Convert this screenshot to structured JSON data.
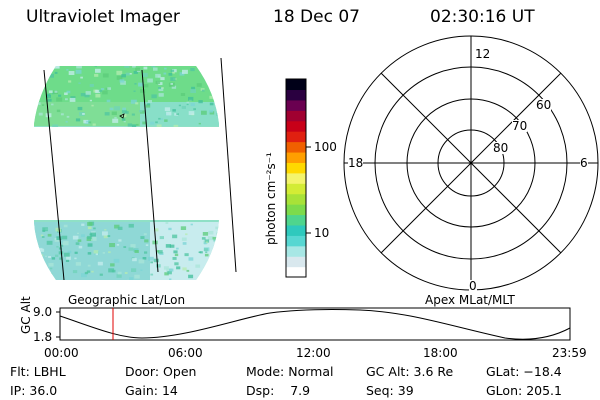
{
  "header": {
    "instrument": "Ultraviolet Imager",
    "date": "18 Dec 07",
    "time": "02:30:16 UT"
  },
  "colorbar": {
    "unit_label": "photon cm⁻²s⁻¹",
    "ticks": [
      "100",
      "10"
    ],
    "colors": [
      "#ffffff",
      "#d9e8ee",
      "#a7e7e5",
      "#57d7d2",
      "#2fc9bd",
      "#4fd58d",
      "#7ddb4b",
      "#a8e238",
      "#d3ec35",
      "#f4f46c",
      "#ffd900",
      "#ff9f00",
      "#f06000",
      "#e02010",
      "#c80018",
      "#a00030",
      "#6a0050",
      "#2a0040",
      "#000018"
    ]
  },
  "map_panel": {
    "caption": "Geographic Lat/Lon",
    "colors": {
      "fill": "#8fe0c6",
      "top": "#6edc8a",
      "bottom": "#9adfe0",
      "pixel_dark": "#4fc6a0"
    }
  },
  "polar_panel": {
    "caption": "Apex MLat/MLT",
    "mlt_labels": {
      "top": "12",
      "bottom": "0",
      "left": "18",
      "right": "6"
    },
    "lat_labels": [
      "80",
      "70",
      "60"
    ]
  },
  "orbit_plot": {
    "ylabel": "GC Alt",
    "yticks": [
      "9.0",
      "1.8"
    ],
    "xticks": [
      "00:00",
      "06:00",
      "12:00",
      "18:00",
      "23:59"
    ],
    "marker_color": "#e00000"
  },
  "status": {
    "rows": [
      [
        {
          "label": "Flt:",
          "value": "LBHL"
        },
        {
          "label": "Door:",
          "value": "Open"
        },
        {
          "label": "Mode:",
          "value": "Normal"
        },
        {
          "label": "GC Alt:",
          "value": "3.6 Re"
        },
        {
          "label": "GLat:",
          "value": "−18.4"
        }
      ],
      [
        {
          "label": "IP:",
          "value": "36.0"
        },
        {
          "label": "Gain:",
          "value": "14"
        },
        {
          "label": "Dsp:",
          "value": "7.9"
        },
        {
          "label": "Seq:",
          "value": "39"
        },
        {
          "label": "GLon:",
          "value": "205.1"
        }
      ]
    ]
  }
}
